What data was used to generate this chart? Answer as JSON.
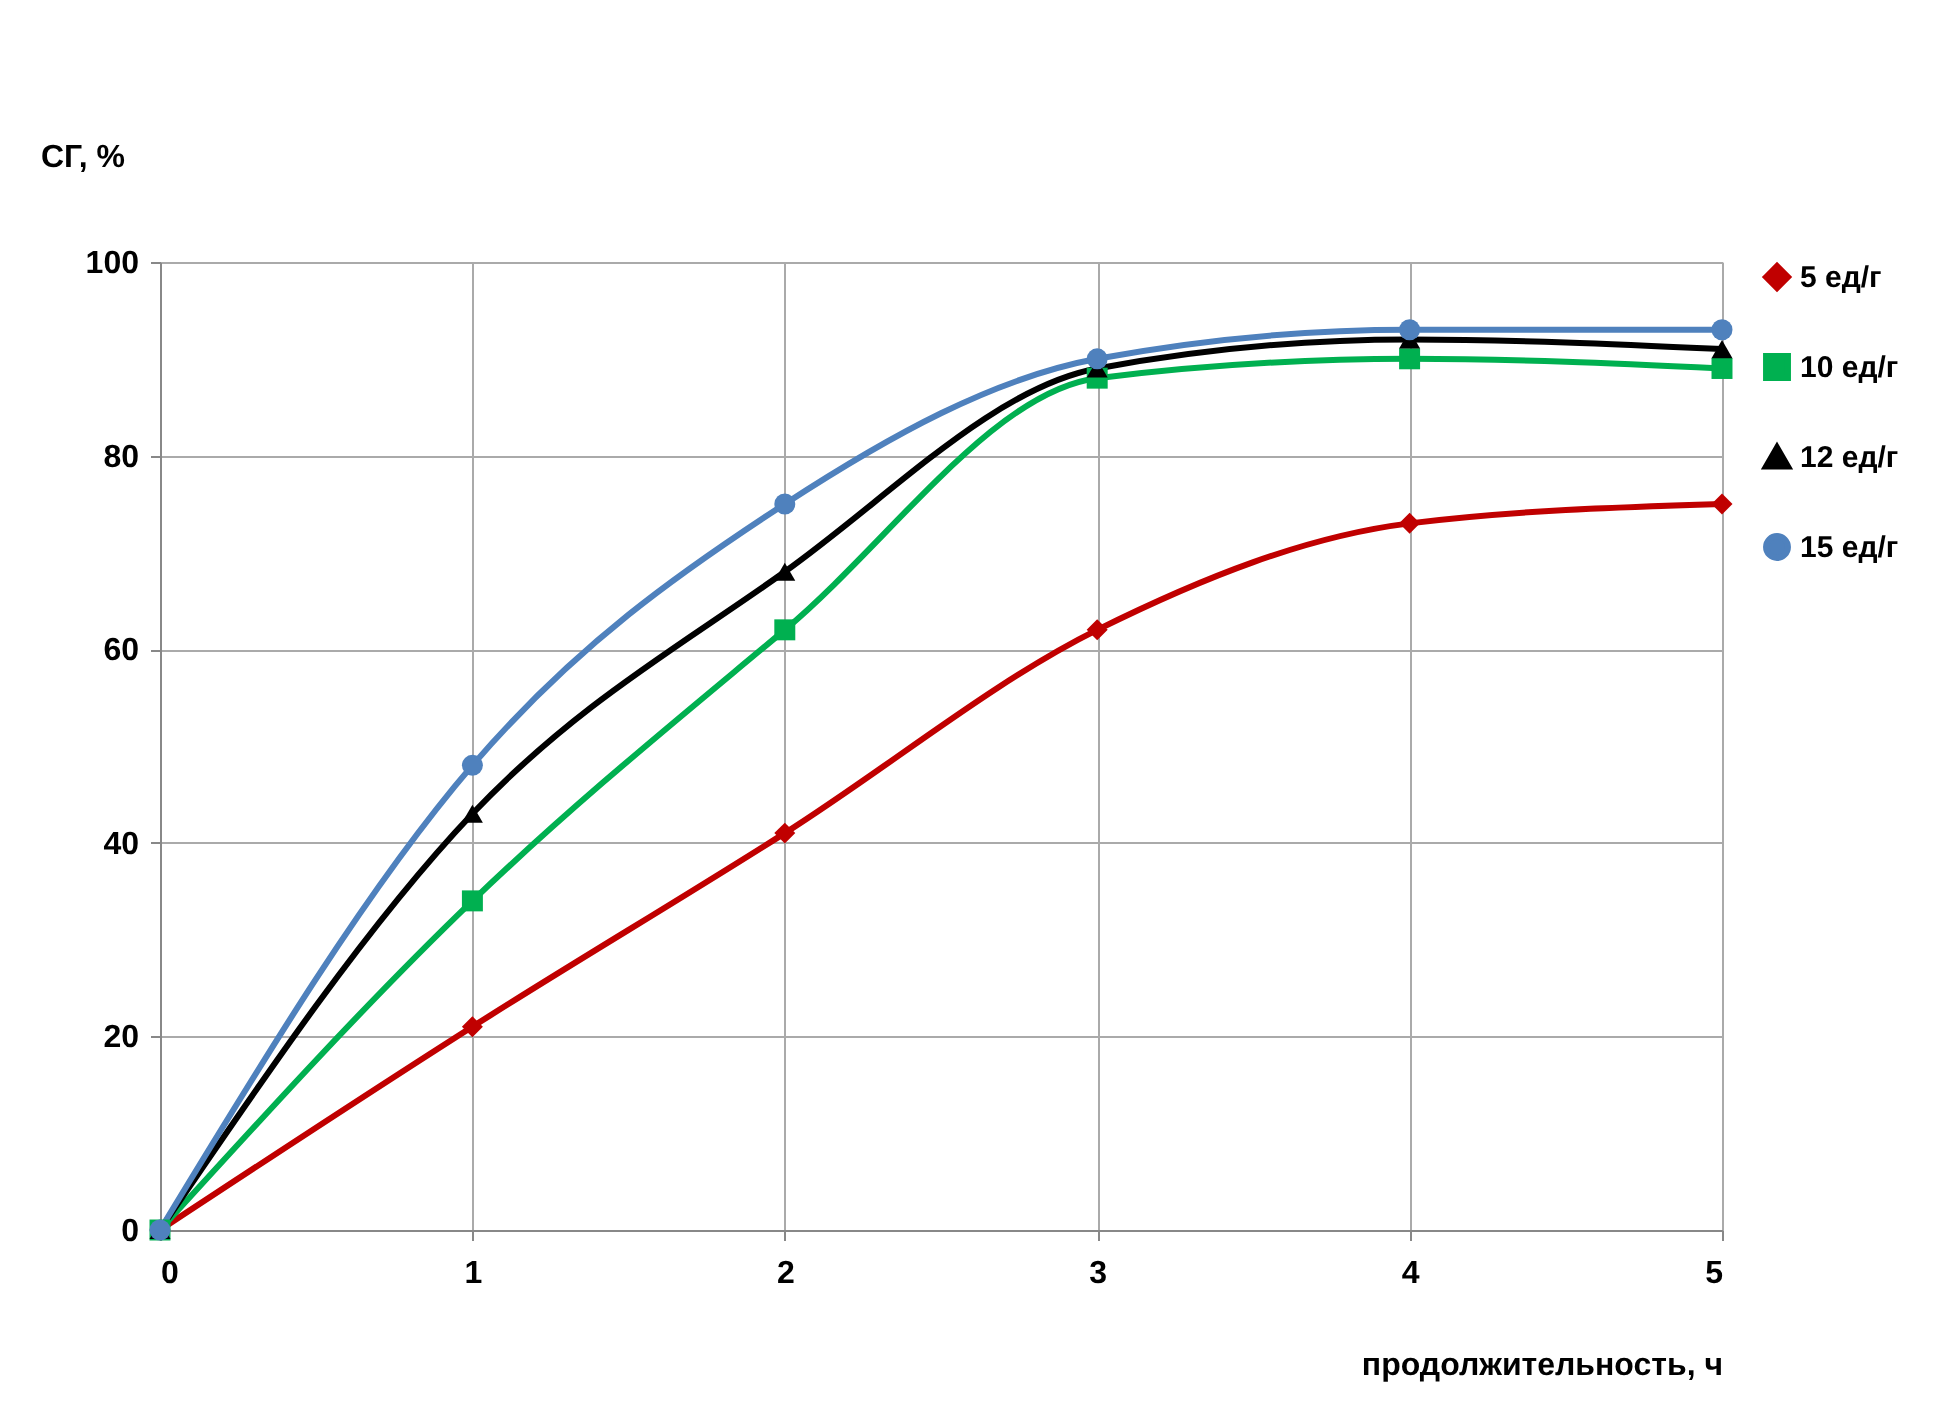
{
  "chart_data": {
    "type": "line",
    "xlabel": "продолжительность, ч",
    "ylabel": "СГ, %",
    "x": [
      0,
      1,
      2,
      3,
      4,
      5
    ],
    "series": [
      {
        "name": "5 ед/г",
        "color": "#c00000",
        "marker": "diamond",
        "values": [
          0,
          21,
          41,
          62,
          73,
          75
        ]
      },
      {
        "name": "10 ед/г",
        "color": "#00b050",
        "marker": "square",
        "values": [
          0,
          34,
          62,
          88,
          90,
          89
        ]
      },
      {
        "name": "12 ед/г",
        "color": "#000000",
        "marker": "triangle",
        "values": [
          0,
          43,
          68,
          89,
          92,
          91
        ]
      },
      {
        "name": "15 ед/г",
        "color": "#4f81bd",
        "marker": "circle",
        "values": [
          0,
          48,
          75,
          90,
          93,
          93
        ]
      }
    ],
    "xlim": [
      0,
      5
    ],
    "xticks": [
      0,
      1,
      2,
      3,
      4,
      5
    ],
    "ylim": [
      0,
      100
    ],
    "yticks": [
      0,
      20,
      40,
      60,
      80,
      100
    ],
    "grid": true,
    "legend": "right",
    "line_style": "solid"
  }
}
